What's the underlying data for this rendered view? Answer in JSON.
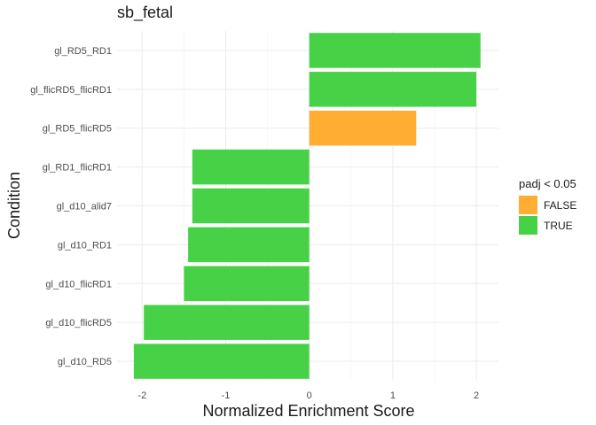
{
  "chart_data": {
    "type": "bar",
    "orientation": "horizontal",
    "title": "sb_fetal",
    "xlabel": "Normalized Enrichment Score",
    "ylabel": "Condition",
    "xlim": [
      -2.2,
      2.2
    ],
    "x_ticks": [
      -2,
      -1,
      0,
      1,
      2
    ],
    "categories": [
      "gl_RD5_RD1",
      "gl_flicRD5_flicRD1",
      "gl_RD5_flicRD5",
      "gl_RD1_flicRD1",
      "gl_d10_alid7",
      "gl_d10_RD1",
      "gl_d10_flicRD1",
      "gl_d10_flicRD5",
      "gl_d10_RD5"
    ],
    "values": [
      2.05,
      2.0,
      1.28,
      -1.4,
      -1.4,
      -1.45,
      -1.5,
      -1.98,
      -2.1
    ],
    "padj_significant": [
      "TRUE",
      "TRUE",
      "FALSE",
      "TRUE",
      "TRUE",
      "TRUE",
      "TRUE",
      "TRUE",
      "TRUE"
    ],
    "legend": {
      "title": "padj < 0.05",
      "placement": "right",
      "entries": [
        {
          "label": "FALSE",
          "color": "#FFAD33"
        },
        {
          "label": "TRUE",
          "color": "#47D147"
        }
      ]
    },
    "grid": true
  }
}
